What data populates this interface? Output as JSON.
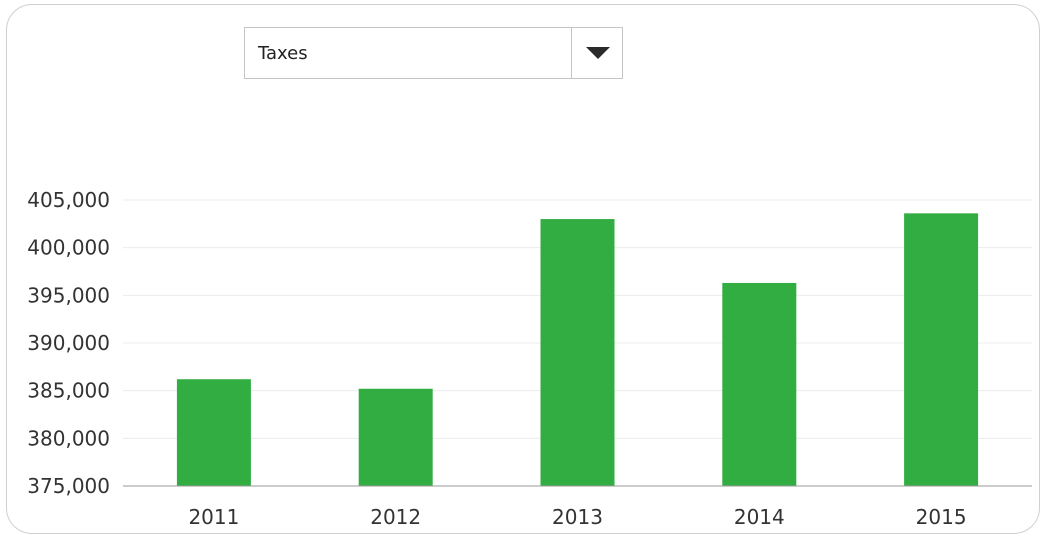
{
  "dropdown": {
    "selected": "Taxes",
    "icon": "chevron-down-icon"
  },
  "colors": {
    "bar": "#32ad42",
    "grid": "#ececec",
    "axis": "#9a9a9a",
    "text": "#333333"
  },
  "chart_data": {
    "type": "bar",
    "title": "",
    "xlabel": "",
    "ylabel": "",
    "categories": [
      "2011",
      "2012",
      "2013",
      "2014",
      "2015"
    ],
    "values": [
      386200,
      385200,
      403000,
      396300,
      403600
    ],
    "ylim": [
      375000,
      405000
    ],
    "yticks": [
      375000,
      380000,
      385000,
      390000,
      395000,
      400000,
      405000
    ],
    "ytick_labels": [
      "375,000",
      "380,000",
      "385,000",
      "390,000",
      "395,000",
      "400,000",
      "405,000"
    ],
    "grid": true,
    "legend": "none"
  }
}
